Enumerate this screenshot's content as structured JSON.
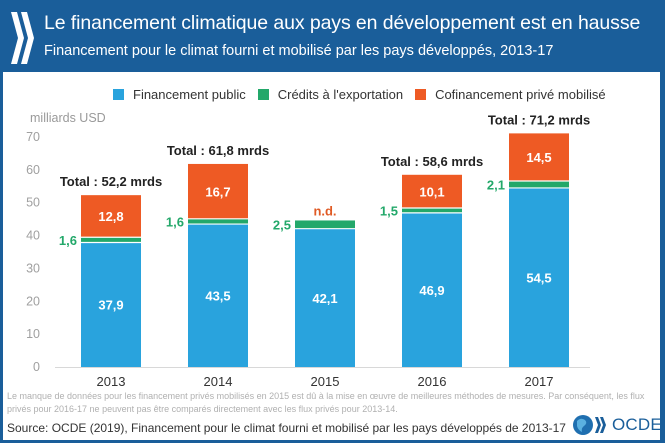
{
  "header": {
    "logo": "oecd-chevrons-icon",
    "title": "Le financement climatique aux pays en développement est en hausse",
    "subtitle": "Financement pour le climat fourni et mobilisé par les pays développés, 2013-17"
  },
  "colors": {
    "header_bg": "#1a5e9a",
    "public": "#29a3dd",
    "export": "#23a86a",
    "private": "#ee5a24",
    "nd_label": "#e05a24",
    "export_label": "#23a86a"
  },
  "chart_data": {
    "type": "bar",
    "stacked": true,
    "title": "Le financement climatique aux pays en développement est en hausse",
    "subtitle": "Financement pour le climat fourni et mobilisé par les pays développés, 2013-17",
    "xlabel": "",
    "ylabel": "milliards USD",
    "ylim": [
      0,
      70
    ],
    "yticks": [
      0,
      10,
      20,
      30,
      40,
      50,
      60,
      70
    ],
    "grid": false,
    "legend_position": "top",
    "categories": [
      "2013",
      "2014",
      "2015",
      "2016",
      "2017"
    ],
    "series": [
      {
        "name": "Financement public",
        "values": [
          37.9,
          43.5,
          42.1,
          46.9,
          54.5
        ],
        "labels": [
          "37,9",
          "43,5",
          "42,1",
          "46,9",
          "54,5"
        ]
      },
      {
        "name": "Crédits à l'exportation",
        "values": [
          1.6,
          1.6,
          2.5,
          1.5,
          2.1
        ],
        "labels": [
          "1,6",
          "1,6",
          "2,5",
          "1,5",
          "2,1"
        ]
      },
      {
        "name": "Cofinancement privé mobilisé",
        "values": [
          12.8,
          16.7,
          null,
          10.1,
          14.5
        ],
        "labels": [
          "12,8",
          "16,7",
          "n.d.",
          "10,1",
          "14,5"
        ]
      }
    ],
    "totals": [
      "Total : 52,2 mrds",
      "Total : 61,8 mrds",
      "",
      "Total : 58,6 mrds",
      "Total : 71,2 mrds"
    ],
    "annotations": [
      "n.d."
    ]
  },
  "legend": [
    {
      "label": "Financement public"
    },
    {
      "label": "Crédits à l'exportation"
    },
    {
      "label": "Cofinancement privé mobilisé"
    }
  ],
  "footer": {
    "note": "Le manque de données pour les financement privés mobilisés en 2015 est dû à la mise en œuvre de meilleures méthodes de mesures. Par conséquent, les flux privés pour 2016-17 ne peuvent pas être comparés directement avec les flux privés pour 2013-14.",
    "source": "Source: OCDE (2019), Financement pour le climat fourni et mobilisé par les pays développés de 2013-17",
    "logo_text": "OCDE"
  }
}
